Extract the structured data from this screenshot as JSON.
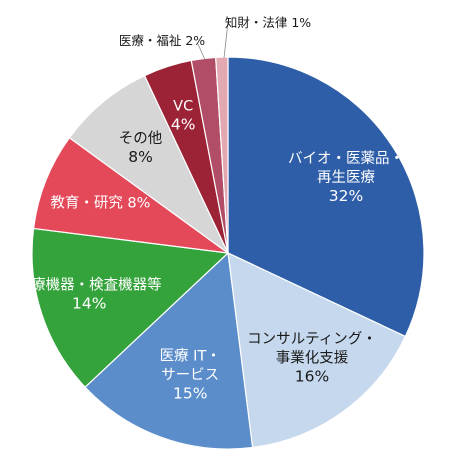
{
  "chart_data": {
    "type": "pie",
    "title": "",
    "slices": [
      {
        "label_lines": [
          "バイオ・医薬品・",
          "再生医療"
        ],
        "pct_text": "32%",
        "value": 32,
        "color": "#2E5EA8",
        "text_color": "#ffffff"
      },
      {
        "label_lines": [
          "コンサルティング・",
          "事業化支援"
        ],
        "pct_text": "16%",
        "value": 16,
        "color": "#C5D8EE",
        "text_color": "#1a1a1a"
      },
      {
        "label_lines": [
          "医療 IT・",
          "サービス"
        ],
        "pct_text": "15%",
        "value": 15,
        "color": "#5B8DCB",
        "text_color": "#ffffff"
      },
      {
        "label_lines": [
          "医療機器・検査機器等"
        ],
        "pct_text": "14%",
        "value": 14,
        "color": "#35A33B",
        "text_color": "#ffffff"
      },
      {
        "label_lines": [
          "教育・研究"
        ],
        "pct_text": "8%",
        "value": 8,
        "color": "#E4495A",
        "text_color": "#ffffff",
        "inline": true
      },
      {
        "label_lines": [
          "その他"
        ],
        "pct_text": "8%",
        "value": 8,
        "color": "#D6D6D6",
        "text_color": "#1a1a1a"
      },
      {
        "label_lines": [
          "VC"
        ],
        "pct_text": "4%",
        "value": 4,
        "color": "#9C2235",
        "text_color": "#ffffff"
      },
      {
        "label_lines": [
          "医療・福祉"
        ],
        "pct_text": "2%",
        "value": 2,
        "color": "#B24D67",
        "text_color": "#1a1a1a",
        "outside": true,
        "inline": true
      },
      {
        "label_lines": [
          "知財・法律"
        ],
        "pct_text": "1%",
        "value": 1,
        "color": "#E3A9B2",
        "text_color": "#1a1a1a",
        "outside": true,
        "inline": true
      }
    ]
  }
}
